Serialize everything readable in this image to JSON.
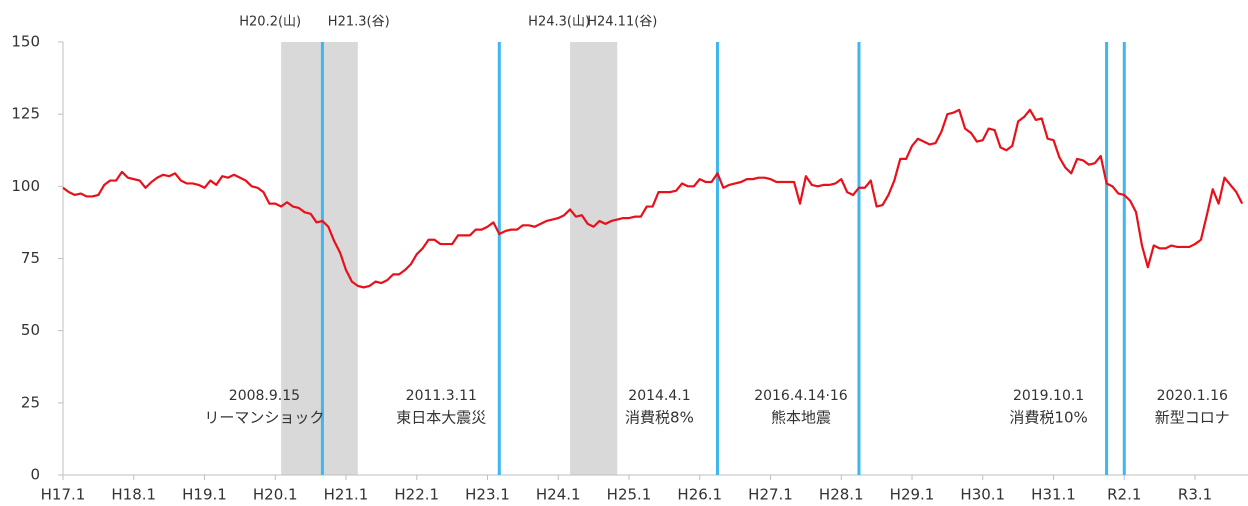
{
  "chart_data": {
    "type": "line",
    "categories": [
      "H17.1",
      null,
      null,
      null,
      null,
      null,
      null,
      null,
      null,
      null,
      null,
      null,
      "H18.1",
      null,
      null,
      null,
      null,
      null,
      null,
      null,
      null,
      null,
      null,
      null,
      "H19.1",
      null,
      null,
      null,
      null,
      null,
      null,
      null,
      null,
      null,
      null,
      null,
      "H20.1",
      null,
      null,
      null,
      null,
      null,
      null,
      null,
      null,
      null,
      null,
      null,
      "H21.1",
      null,
      null,
      null,
      null,
      null,
      null,
      null,
      null,
      null,
      null,
      null,
      "H22.1",
      null,
      null,
      null,
      null,
      null,
      null,
      null,
      null,
      null,
      null,
      null,
      "H23.1",
      null,
      null,
      null,
      null,
      null,
      null,
      null,
      null,
      null,
      null,
      null,
      "H24.1",
      null,
      null,
      null,
      null,
      null,
      null,
      null,
      null,
      null,
      null,
      null,
      "H25.1",
      null,
      null,
      null,
      null,
      null,
      null,
      null,
      null,
      null,
      null,
      null,
      "H26.1",
      null,
      null,
      null,
      null,
      null,
      null,
      null,
      null,
      null,
      null,
      null,
      "H27.1",
      null,
      null,
      null,
      null,
      null,
      null,
      null,
      null,
      null,
      null,
      null,
      "H28.1",
      null,
      null,
      null,
      null,
      null,
      null,
      null,
      null,
      null,
      null,
      null,
      "H29.1",
      null,
      null,
      null,
      null,
      null,
      null,
      null,
      null,
      null,
      null,
      null,
      "H30.1",
      null,
      null,
      null,
      null,
      null,
      null,
      null,
      null,
      null,
      null,
      null,
      "H31.1",
      null,
      null,
      null,
      null,
      null,
      null,
      null,
      null,
      null,
      null,
      null,
      "R2.1",
      null,
      null,
      null,
      null,
      null,
      null,
      null,
      null,
      null,
      null,
      null,
      "R3.1",
      null,
      null,
      null,
      null,
      null,
      null,
      null,
      null
    ],
    "values": [
      99.5,
      98,
      97,
      97.5,
      96.5,
      96.5,
      97,
      100.5,
      102,
      102,
      105,
      103,
      102.5,
      102,
      99.5,
      101.5,
      103,
      104,
      103.5,
      104.5,
      102,
      101,
      101,
      100.5,
      99.5,
      102,
      100.5,
      103.5,
      103,
      104,
      103,
      102,
      100,
      99.5,
      98,
      94,
      94,
      93,
      94.5,
      93,
      92.5,
      91,
      90.5,
      87.5,
      88,
      86,
      81,
      77,
      71,
      67,
      65.5,
      65,
      65.5,
      67,
      66.5,
      67.5,
      69.5,
      69.5,
      71,
      73,
      76.5,
      78.5,
      81.5,
      81.5,
      80,
      80,
      80,
      83,
      83,
      83,
      85,
      85,
      86,
      87.5,
      83.5,
      84.5,
      85,
      85,
      86.5,
      86.5,
      86,
      87,
      88,
      88.5,
      89,
      90,
      92,
      89.5,
      90,
      87,
      86,
      88,
      87,
      88,
      88.5,
      89,
      89,
      89.5,
      89.5,
      93,
      93,
      98,
      98,
      98,
      98.5,
      101,
      100,
      100,
      102.5,
      101.5,
      101.5,
      104.5,
      99.5,
      100.5,
      101,
      101.5,
      102.5,
      102.5,
      103,
      103,
      102.5,
      101.5,
      101.5,
      101.5,
      101.5,
      94,
      103.5,
      100.5,
      100,
      100.5,
      100.5,
      101,
      102.5,
      98,
      97,
      99.5,
      99.5,
      102,
      93,
      93.5,
      97,
      102,
      109.5,
      109.5,
      114,
      116.5,
      115.5,
      114.5,
      115,
      119,
      125,
      125.5,
      126.5,
      120,
      118.5,
      115.5,
      116,
      120,
      119.5,
      113.5,
      112.5,
      114,
      122.5,
      124,
      126.5,
      123,
      123.5,
      116.5,
      116,
      110,
      106.5,
      104.5,
      109.5,
      109,
      107.5,
      108,
      110.5,
      101,
      100,
      97.5,
      97,
      95,
      91,
      79.5,
      72,
      79.5,
      78.5,
      78.5,
      79.5,
      79,
      79,
      79,
      80,
      81.5,
      90,
      99,
      94,
      103,
      100.5,
      98,
      94
    ],
    "color": "#e8101a",
    "ylim": [
      0,
      150
    ],
    "yticks": [
      0,
      25,
      50,
      75,
      100,
      125,
      150
    ],
    "recessions": [
      {
        "start": "H20.2(山)",
        "end": "H21.3(谷)"
      },
      {
        "start": "H24.3(山)",
        "end": "H24.11(谷)"
      }
    ],
    "recession_color": "#d9d9d9",
    "events": [
      {
        "date": "2008.9.15",
        "label": "リーマンショック"
      },
      {
        "date": "2011.3.11",
        "label": "東日本大震災"
      },
      {
        "date": "2014.4.1",
        "label": "消費税8%"
      },
      {
        "date": "2016.4.14·16",
        "label": "熊本地震"
      },
      {
        "date": "2019.10.1",
        "label": "消費税10%"
      },
      {
        "date": "2020.1.16",
        "label": "新型コロナ"
      }
    ],
    "event_color": "#3db7ee"
  }
}
